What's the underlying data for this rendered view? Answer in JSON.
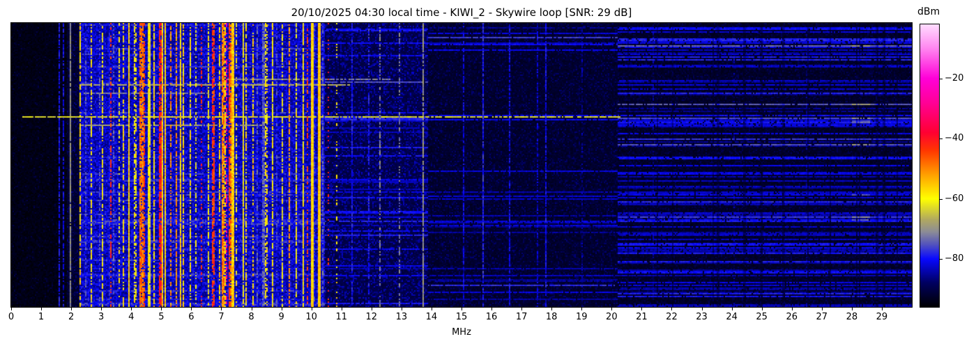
{
  "title": "20/10/2025 04:30 local time - KIWI_2 - Skywire loop [SNR: 29 dB]",
  "header": {
    "datetime_local": "20/10/2025 04:30",
    "receiver": "KIWI_2",
    "antenna": "Skywire loop",
    "snr_label": "SNR: 29 dB",
    "snr_db": 29
  },
  "chart_data": {
    "type": "heatmap",
    "subtype": "radio-spectrum-waterfall",
    "title": "20/10/2025 04:30 local time - KIWI_2 - Skywire loop [SNR: 29 dB]",
    "xlabel": "MHz",
    "x_range": [
      0,
      30
    ],
    "x_ticks": [
      0,
      1,
      2,
      3,
      4,
      5,
      6,
      7,
      8,
      9,
      10,
      11,
      12,
      13,
      14,
      15,
      16,
      17,
      18,
      19,
      20,
      21,
      22,
      23,
      24,
      25,
      26,
      27,
      28,
      29
    ],
    "y_ticks": [],
    "grid": false,
    "colorbar": {
      "label": "dBm",
      "range_dbm": [
        -96,
        -2
      ],
      "ticks": [
        -20,
        -40,
        -60,
        -80
      ],
      "stops": [
        [
          -96,
          "#000000"
        ],
        [
          -88,
          "#00005f"
        ],
        [
          -80,
          "#0808ff"
        ],
        [
          -75,
          "#5555bb"
        ],
        [
          -71,
          "#8c8c96"
        ],
        [
          -67,
          "#b0a860"
        ],
        [
          -60,
          "#ffff00"
        ],
        [
          -52,
          "#ffa000"
        ],
        [
          -44,
          "#ff3700"
        ],
        [
          -38,
          "#ff0032"
        ],
        [
          -28,
          "#ff0096"
        ],
        [
          -20,
          "#ff00d8"
        ],
        [
          -10,
          "#ff86f0"
        ],
        [
          -2,
          "#ffdcff"
        ]
      ]
    },
    "regions": [
      {
        "f0": 0.0,
        "f1": 1.85,
        "base": -95.5,
        "sp": 0.1,
        "amp": 6,
        "hprob": 0.0
      },
      {
        "f0": 1.85,
        "f1": 2.28,
        "base": -93.5,
        "sp": 0.3,
        "amp": 8,
        "hprob": 0.0
      },
      {
        "f0": 2.28,
        "f1": 10.45,
        "base": -87.0,
        "sp": 0.85,
        "amp": 9,
        "hprob": 0.12,
        "hboost": 4
      },
      {
        "f0": 10.45,
        "f1": 13.9,
        "base": -91.5,
        "sp": 0.5,
        "amp": 9,
        "hprob": 0.16,
        "hband": [
          -84,
          -78
        ]
      },
      {
        "f0": 13.9,
        "f1": 20.2,
        "base": -93.5,
        "sp": 0.32,
        "amp": 7,
        "hprob": 0.1,
        "hband": [
          -86,
          -80
        ]
      },
      {
        "f0": 20.2,
        "f1": 30.0,
        "base": -94.0,
        "sp": 0.3,
        "amp": 6,
        "hprob": 0.4,
        "hband": [
          -86,
          -77
        ],
        "hotspot": [
          28.0,
          28.6
        ]
      }
    ],
    "features": [
      {
        "f": 1.6,
        "level": -80,
        "duty": 0.8,
        "w": 1,
        "var": 4
      },
      {
        "f": 1.75,
        "level": -81,
        "duty": 0.7,
        "w": 1,
        "var": 4
      },
      {
        "f": 1.97,
        "level": -70,
        "duty": 0.95,
        "w": 1,
        "var": 3
      },
      {
        "f": 3.33,
        "level": -43,
        "duty": 0.5,
        "w": 1,
        "var": 4
      },
      {
        "f": 4.3,
        "level": -48,
        "duty": 0.85,
        "w": 2,
        "var": 5
      },
      {
        "f": 4.42,
        "level": -44,
        "duty": 0.6,
        "w": 1,
        "var": 5
      },
      {
        "f": 5.0,
        "level": -57,
        "duty": 1.0,
        "w": 3,
        "var": 6
      },
      {
        "f": 6.35,
        "level": -43,
        "duty": 0.3,
        "w": 1,
        "var": 3
      },
      {
        "f": 7.08,
        "level": -50,
        "duty": 0.9,
        "w": 2,
        "var": 6
      },
      {
        "f": 7.16,
        "level": -29,
        "duty": 0.55,
        "w": 1,
        "var": 5
      },
      {
        "f": 7.26,
        "level": -44,
        "duty": 0.8,
        "w": 1,
        "var": 5
      },
      {
        "f": 7.38,
        "level": -56,
        "duty": 1.0,
        "w": 3,
        "var": 5
      },
      {
        "f": 9.87,
        "level": -44,
        "duty": 0.55,
        "w": 1,
        "var": 4
      },
      {
        "f": 10.02,
        "level": -56,
        "duty": 1.0,
        "w": 2,
        "var": 3
      },
      {
        "f": 10.27,
        "level": -55,
        "duty": 1.0,
        "w": 2,
        "var": 3
      },
      {
        "f": 10.55,
        "level": -42,
        "duty": 0.22,
        "w": 1,
        "var": 3
      },
      {
        "f": 10.85,
        "level": -58,
        "duty": 0.25,
        "w": 1,
        "var": 4
      },
      {
        "f": 11.35,
        "level": -80,
        "duty": 0.85,
        "w": 1,
        "var": 4
      },
      {
        "f": 11.9,
        "level": -79,
        "duty": 0.7,
        "w": 1,
        "var": 4
      },
      {
        "f": 12.3,
        "level": -72,
        "duty": 0.5,
        "w": 1,
        "var": 4
      },
      {
        "f": 12.95,
        "level": -73,
        "duty": 0.5,
        "w": 1,
        "var": 4
      },
      {
        "f": 13.7,
        "level": -70,
        "duty": 0.9,
        "w": 1,
        "var": 3
      },
      {
        "f": 15.05,
        "level": -82,
        "duty": 0.8,
        "w": 1,
        "var": 4
      },
      {
        "f": 15.7,
        "level": -79,
        "duty": 0.9,
        "w": 1,
        "var": 4
      },
      {
        "f": 16.6,
        "level": -81,
        "duty": 0.8,
        "w": 1,
        "var": 4
      },
      {
        "f": 17.55,
        "level": -83,
        "duty": 0.7,
        "w": 1,
        "var": 4
      },
      {
        "f": 17.8,
        "level": -81,
        "duty": 0.85,
        "w": 1,
        "var": 4
      },
      {
        "f": 19.0,
        "level": -86,
        "duty": 0.6,
        "w": 1,
        "var": 4
      },
      {
        "f": 21.4,
        "level": -87,
        "duty": 0.5,
        "w": 1,
        "var": 4
      },
      {
        "f": 24.1,
        "level": -87,
        "duty": 0.5,
        "w": 1,
        "var": 4
      },
      {
        "f": 26.5,
        "level": -88,
        "duty": 0.5,
        "w": 1,
        "var": 4
      }
    ],
    "streaks": [
      {
        "t": 0.195,
        "f0": 7.2,
        "f1": 12.6,
        "level": -72
      },
      {
        "t": 0.215,
        "f0": 2.3,
        "f1": 11.3,
        "level": -67
      },
      {
        "t": 0.243,
        "f0": 2.4,
        "f1": 6.5,
        "level": -72
      },
      {
        "t": 0.328,
        "f0": 0.35,
        "f1": 20.3,
        "level": -63
      },
      {
        "t": 0.356,
        "f0": 2.3,
        "f1": 8.3,
        "level": -69
      }
    ],
    "auto_stripes": {
      "f0": 2.3,
      "f1": 10.42,
      "spacing": 0.185,
      "subbands": [
        {
          "f0": 2.3,
          "f1": 4.1,
          "weights": {
            "yellow": 0.45,
            "blue": 0.35,
            "orange": 0.12,
            "red": 0.08
          }
        },
        {
          "f0": 4.1,
          "f1": 5.5,
          "weights": {
            "yellow": 0.55,
            "orange": 0.25,
            "red": 0.1,
            "blue": 0.1
          }
        },
        {
          "f0": 5.5,
          "f1": 6.9,
          "weights": {
            "yellow": 0.5,
            "blue": 0.35,
            "red": 0.15
          }
        },
        {
          "f0": 6.9,
          "f1": 7.45,
          "weights": {
            "orange": 0.4,
            "red": 0.3,
            "yellow": 0.3
          }
        },
        {
          "f0": 7.45,
          "f1": 8.7,
          "weights": {
            "yellow": 0.5,
            "blue": 0.4,
            "orange": 0.1
          }
        },
        {
          "f0": 8.7,
          "f1": 10.42,
          "weights": {
            "yellow": 0.55,
            "blue": 0.35,
            "orange": 0.1
          }
        }
      ],
      "levels": {
        "yellow": [
          -62,
          -55
        ],
        "orange": [
          -53,
          -47
        ],
        "red": [
          -45,
          -40
        ],
        "blue": [
          -81,
          -74
        ]
      }
    },
    "render": {
      "seed": 1337,
      "cols": 646,
      "rows": 204
    }
  }
}
